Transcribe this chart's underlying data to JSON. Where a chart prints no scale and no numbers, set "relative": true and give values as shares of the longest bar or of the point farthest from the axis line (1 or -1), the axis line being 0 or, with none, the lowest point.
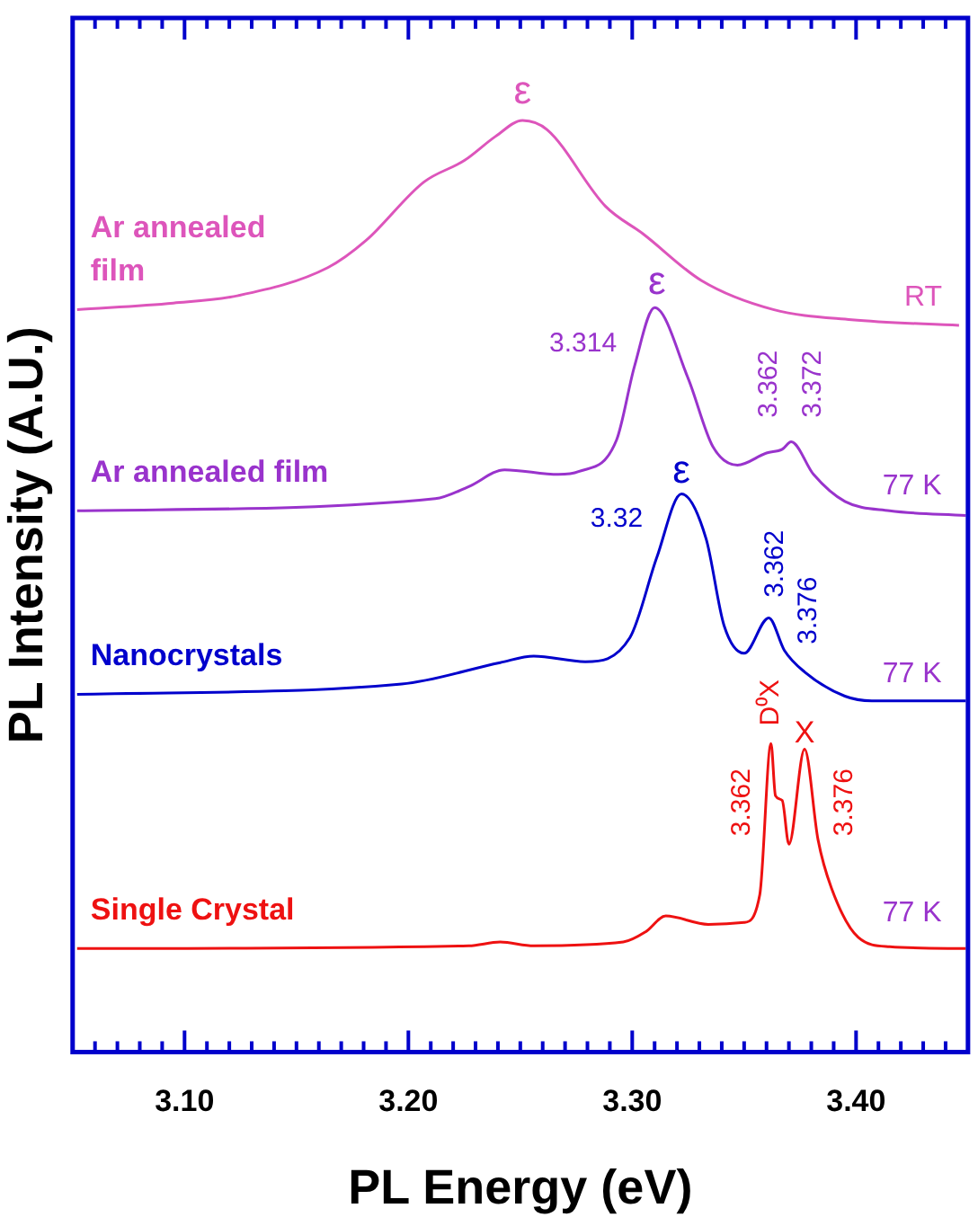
{
  "chart_data": {
    "type": "line",
    "relative": true,
    "xlabel": "PL Energy (eV)",
    "ylabel": "PL Intensity (A.U.)",
    "xlim": [
      3.05,
      3.45
    ],
    "xticks": [
      {
        "value": 3.06,
        "label": null
      },
      {
        "value": 3.07,
        "label": null
      },
      {
        "value": 3.08,
        "label": null
      },
      {
        "value": 3.09,
        "label": null
      },
      {
        "value": 3.1,
        "label": "3.10"
      },
      {
        "value": 3.11,
        "label": null
      },
      {
        "value": 3.12,
        "label": null
      },
      {
        "value": 3.13,
        "label": null
      },
      {
        "value": 3.14,
        "label": null
      },
      {
        "value": 3.15,
        "label": null
      },
      {
        "value": 3.16,
        "label": null
      },
      {
        "value": 3.17,
        "label": null
      },
      {
        "value": 3.18,
        "label": null
      },
      {
        "value": 3.19,
        "label": null
      },
      {
        "value": 3.2,
        "label": "3.20"
      },
      {
        "value": 3.21,
        "label": null
      },
      {
        "value": 3.22,
        "label": null
      },
      {
        "value": 3.23,
        "label": null
      },
      {
        "value": 3.24,
        "label": null
      },
      {
        "value": 3.25,
        "label": null
      },
      {
        "value": 3.26,
        "label": null
      },
      {
        "value": 3.27,
        "label": null
      },
      {
        "value": 3.28,
        "label": null
      },
      {
        "value": 3.29,
        "label": null
      },
      {
        "value": 3.3,
        "label": "3.30"
      },
      {
        "value": 3.31,
        "label": null
      },
      {
        "value": 3.32,
        "label": null
      },
      {
        "value": 3.33,
        "label": null
      },
      {
        "value": 3.34,
        "label": null
      },
      {
        "value": 3.35,
        "label": null
      },
      {
        "value": 3.36,
        "label": null
      },
      {
        "value": 3.37,
        "label": null
      },
      {
        "value": 3.38,
        "label": null
      },
      {
        "value": 3.39,
        "label": null
      },
      {
        "value": 3.4,
        "label": "3.40"
      },
      {
        "value": 3.41,
        "label": null
      },
      {
        "value": 3.42,
        "label": null
      },
      {
        "value": 3.43,
        "label": null
      },
      {
        "value": 3.44,
        "label": null
      }
    ],
    "grid": false,
    "legend": false,
    "marker": "none",
    "line_style": "solid",
    "series": [
      {
        "name": "Ar annealed film",
        "color": "#dd55bb",
        "x": [
          3.052,
          3.095,
          3.124,
          3.164,
          3.181,
          3.207,
          3.225,
          3.239,
          3.251,
          3.262,
          3.288,
          3.305,
          3.331,
          3.363,
          3.398,
          3.446
        ],
        "values": [
          0.797,
          0.804,
          0.812,
          0.842,
          0.871,
          0.934,
          0.957,
          0.983,
          1.0,
          0.99,
          0.908,
          0.878,
          0.828,
          0.797,
          0.786,
          0.78
        ]
      },
      {
        "name": "Ar annealed film",
        "color": "#9933cc",
        "x": [
          3.052,
          3.212,
          3.227,
          3.243,
          3.267,
          3.276,
          3.293,
          3.301,
          3.31,
          3.325,
          3.336,
          3.347,
          3.36,
          3.367,
          3.371,
          3.381,
          3.395,
          3.415,
          3.449
        ],
        "values": [
          0.581,
          0.594,
          0.607,
          0.625,
          0.62,
          0.623,
          0.657,
          0.736,
          0.799,
          0.723,
          0.65,
          0.63,
          0.643,
          0.647,
          0.655,
          0.62,
          0.591,
          0.581,
          0.576
        ]
      },
      {
        "name": "Nanocrystals",
        "color": "#0000cc",
        "x": [
          3.052,
          3.197,
          3.241,
          3.256,
          3.279,
          3.299,
          3.311,
          3.322,
          3.333,
          3.341,
          3.35,
          3.361,
          3.368,
          3.377,
          3.395,
          3.407,
          3.449
        ],
        "values": [
          0.384,
          0.395,
          0.418,
          0.425,
          0.419,
          0.445,
          0.531,
          0.599,
          0.551,
          0.458,
          0.428,
          0.466,
          0.431,
          0.408,
          0.382,
          0.377,
          0.377
        ]
      },
      {
        "name": "Single Crystal",
        "color": "#ee1111",
        "x": [
          3.052,
          3.227,
          3.241,
          3.256,
          3.296,
          3.306,
          3.315,
          3.334,
          3.35,
          3.357,
          3.362,
          3.364,
          3.367,
          3.37,
          3.377,
          3.383,
          3.389,
          3.401,
          3.415,
          3.449
        ],
        "values": [
          0.111,
          0.114,
          0.118,
          0.114,
          0.118,
          0.129,
          0.146,
          0.137,
          0.139,
          0.169,
          0.331,
          0.275,
          0.27,
          0.223,
          0.325,
          0.228,
          0.176,
          0.123,
          0.113,
          0.111
        ]
      }
    ],
    "annotations": [
      "ε",
      "RT",
      "ε",
      "3.314",
      "3.362",
      "3.372",
      "77 K",
      "ε",
      "3.32",
      "3.362",
      "3.376",
      "77 K",
      "D⁰X",
      "X",
      "3.362",
      "3.376",
      "77 K"
    ]
  }
}
